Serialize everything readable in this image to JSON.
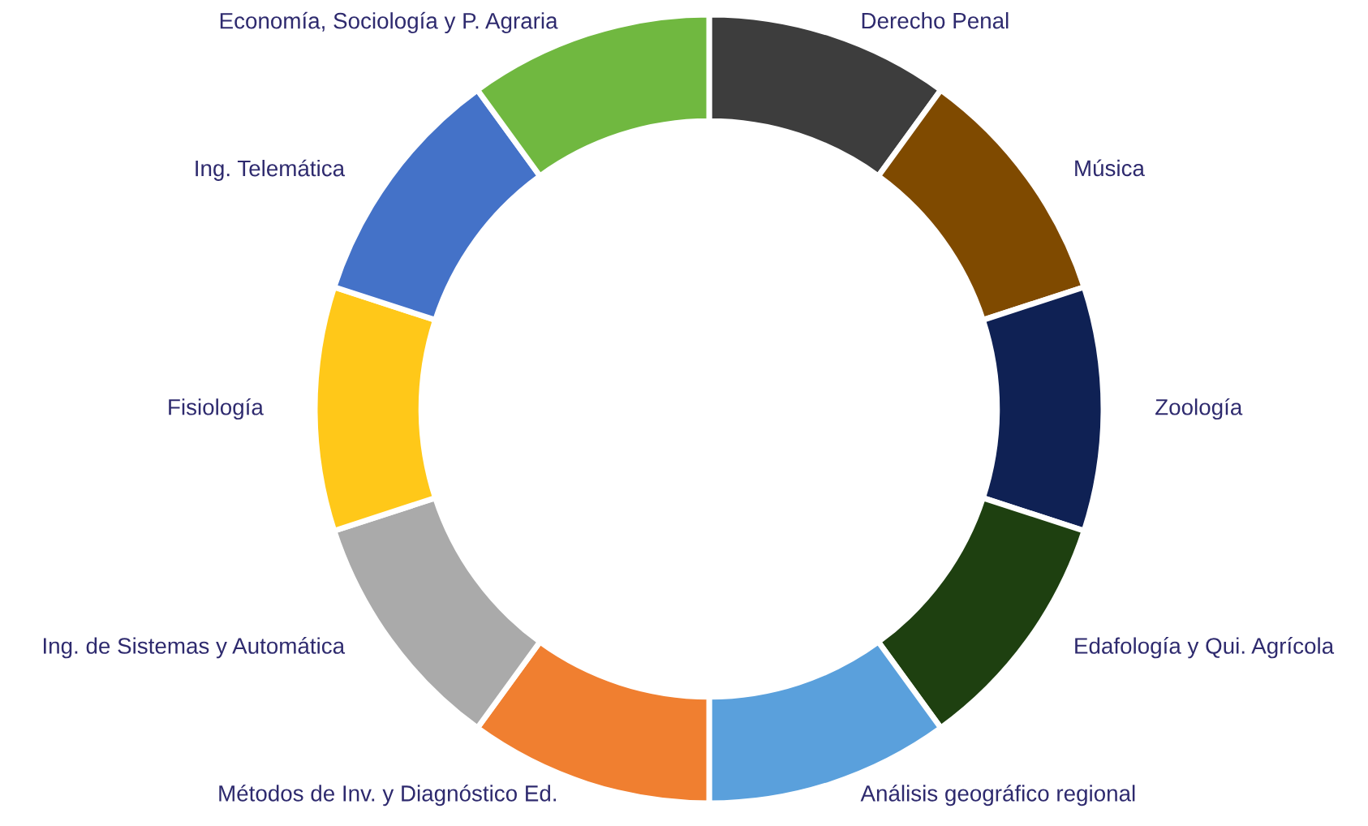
{
  "chart_data": {
    "type": "donut",
    "categories": [
      "Derecho Penal",
      "Música",
      "Zoología",
      "Edafología y Qui. Agrícola",
      "Análisis geográfico regional",
      "Métodos de Inv. y Diagnóstico Ed.",
      "Ing. de Sistemas y Automática",
      "Fisiología",
      "Ing. Telemática",
      "Economía, Sociología y P. Agraria"
    ],
    "values": [
      10,
      10,
      10,
      10,
      10,
      10,
      10,
      10,
      10,
      10
    ],
    "colors": [
      "#3d3d3d",
      "#7f4a00",
      "#0f2154",
      "#1e4010",
      "#5aa0dc",
      "#f07f30",
      "#aaaaaa",
      "#ffc819",
      "#4472c8",
      "#70b840"
    ]
  }
}
